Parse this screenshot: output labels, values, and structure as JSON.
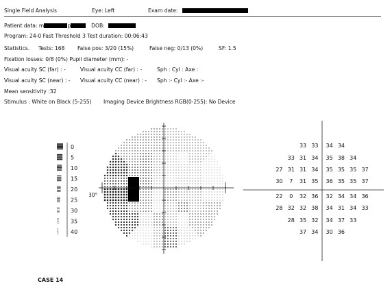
{
  "header": {
    "title": "Single Field Analysis",
    "eye": "Eye: Left",
    "exam_date_label": "Exam date:"
  },
  "patient": {
    "data_label": "Patient data: m",
    "name_suffix": "p",
    "dob_label": "DOB:"
  },
  "program_line": "Program: 24-0 Fast Threshold 3  Test duration: 00:06:43",
  "stats": {
    "label": "Statistics.",
    "tests": "Tests: 168",
    "false_pos": "False pos: 3/20 (15%)",
    "false_neg": "False neg: 0/13 (0%)",
    "sf": "SF: 1.5"
  },
  "fixation_line": "Fixation losses: 0/8 (0%)  Pupil diameter (mm): -",
  "acuity": {
    "sc_far": "Visual acuity SC (far)   :  -",
    "cc_far": "Visual acuity CC (far)   :  -",
    "far_rx": "Sph :  Cyl :  Axe :",
    "sc_near": "Visual acuity SC (near) : -",
    "cc_near": "Visual acuity CC (near) : -",
    "near_rx": "Sph :- Cyl :- Axe :-"
  },
  "mean_sensitivity": "Mean sensitivity :32",
  "stimulus_line": "Stimulus : White on Black (5-255)",
  "device_line": "Imaging Device Brightness RGB(0-255): No Device",
  "greyscale_legend": [
    "0",
    "5",
    "10",
    "15",
    "20",
    "25",
    "30",
    "35",
    "40"
  ],
  "degree_label": "30°",
  "threshold_grid": {
    "columns": [
      -27,
      -21,
      -15,
      -9,
      -3,
      3,
      9,
      15,
      21,
      27
    ],
    "rows": [
      {
        "y": 21,
        "values": {
          "-9": "33",
          "-3": "33",
          "3": "34",
          "9": "34"
        }
      },
      {
        "y": 15,
        "values": {
          "-15": "33",
          "-9": "31",
          "-3": "34",
          "3": "35",
          "9": "38",
          "15": "34"
        }
      },
      {
        "y": 9,
        "values": {
          "-21": "27",
          "-15": "31",
          "-9": "31",
          "-3": "34",
          "3": "35",
          "9": "35",
          "15": "35",
          "21": "37"
        }
      },
      {
        "y": 3,
        "values": {
          "-21": "30",
          "-15": "7",
          "-9": "31",
          "-3": "35",
          "3": "36",
          "9": "35",
          "15": "35",
          "21": "37"
        }
      },
      {
        "y": -3,
        "values": {
          "-21": "22",
          "-15": "0",
          "-9": "32",
          "-3": "36",
          "3": "32",
          "9": "34",
          "15": "34",
          "21": "36"
        }
      },
      {
        "y": -9,
        "values": {
          "-21": "28",
          "-15": "32",
          "-9": "32",
          "-3": "38",
          "3": "34",
          "9": "31",
          "15": "34",
          "21": "33"
        }
      },
      {
        "y": -15,
        "values": {
          "-15": "28",
          "-9": "35",
          "-3": "32",
          "3": "34",
          "9": "37",
          "15": "33"
        }
      },
      {
        "y": -21,
        "values": {
          "-9": "37",
          "-3": "34",
          "3": "30",
          "9": "36"
        }
      }
    ]
  },
  "footer": {
    "case_label": "CASE 14"
  }
}
